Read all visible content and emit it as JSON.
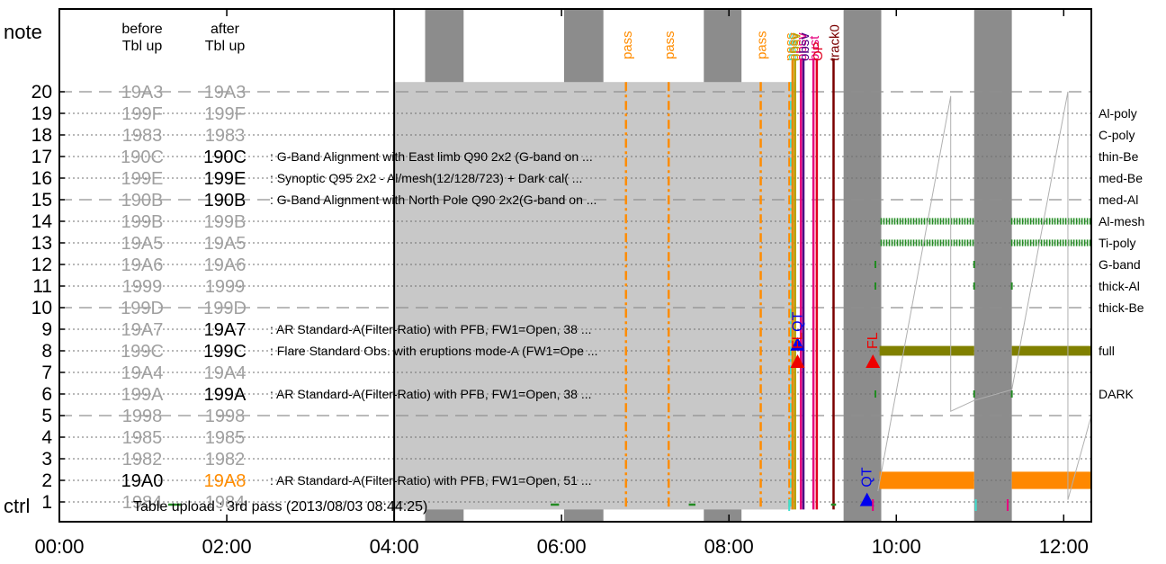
{
  "chart_data": {
    "type": "timeline",
    "title": "",
    "footer": "Table upload : 3rd pass (2013/08/03 08:44:25)",
    "row_axis": {
      "top_label": "note",
      "bottom_label": "ctrl",
      "rows": [
        1,
        2,
        3,
        4,
        5,
        6,
        7,
        8,
        9,
        10,
        11,
        12,
        13,
        14,
        15,
        16,
        17,
        18,
        19,
        20
      ],
      "dashed_rows": [
        5,
        10,
        15,
        20
      ]
    },
    "table_columns": {
      "before": "before\nTbl up",
      "after": "after\nTbl up"
    },
    "table_rows": [
      {
        "row": 20,
        "before": "19A3",
        "after": "19A3",
        "after_state": "same",
        "desc": ""
      },
      {
        "row": 19,
        "before": "199F",
        "after": "199F",
        "after_state": "same",
        "desc": ""
      },
      {
        "row": 18,
        "before": "1983",
        "after": "1983",
        "after_state": "same",
        "desc": ""
      },
      {
        "row": 17,
        "before": "190C",
        "after": "190C",
        "after_state": "active",
        "desc": ": G-Band Alignment with East limb Q90 2x2 (G-band on ..."
      },
      {
        "row": 16,
        "before": "199E",
        "after": "199E",
        "after_state": "active",
        "desc": ": Synoptic Q95 2x2 - Al/mesh(12/128/723) + Dark cal( ..."
      },
      {
        "row": 15,
        "before": "190B",
        "after": "190B",
        "after_state": "active",
        "desc": ": G-Band Alignment with North Pole Q90 2x2(G-band on ..."
      },
      {
        "row": 14,
        "before": "199B",
        "after": "199B",
        "after_state": "same",
        "desc": ""
      },
      {
        "row": 13,
        "before": "19A5",
        "after": "19A5",
        "after_state": "same",
        "desc": ""
      },
      {
        "row": 12,
        "before": "19A6",
        "after": "19A6",
        "after_state": "same",
        "desc": ""
      },
      {
        "row": 11,
        "before": "1999",
        "after": "1999",
        "after_state": "same",
        "desc": ""
      },
      {
        "row": 10,
        "before": "199D",
        "after": "199D",
        "after_state": "same",
        "desc": ""
      },
      {
        "row": 9,
        "before": "19A7",
        "after": "19A7",
        "after_state": "active",
        "desc": ": AR Standard-A(Filter-Ratio) with PFB, FW1=Open, 38 ..."
      },
      {
        "row": 8,
        "before": "199C",
        "after": "199C",
        "after_state": "active",
        "desc": ": Flare Standard Obs. with eruptions mode-A (FW1=Ope ..."
      },
      {
        "row": 7,
        "before": "19A4",
        "after": "19A4",
        "after_state": "same",
        "desc": ""
      },
      {
        "row": 6,
        "before": "199A",
        "after": "199A",
        "after_state": "active",
        "desc": ": AR Standard-A(Filter-Ratio) with PFB, FW1=Open, 38 ..."
      },
      {
        "row": 5,
        "before": "1998",
        "after": "1998",
        "after_state": "same",
        "desc": ""
      },
      {
        "row": 4,
        "before": "1985",
        "after": "1985",
        "after_state": "same",
        "desc": ""
      },
      {
        "row": 3,
        "before": "1982",
        "after": "1982",
        "after_state": "same",
        "desc": ""
      },
      {
        "row": 2,
        "before": "19A0",
        "after": "19A8",
        "after_state": "changed",
        "desc": ": AR Standard-A(Filter-Ratio) with PFB, FW1=Open, 51 ..."
      },
      {
        "row": 1,
        "before": "1984",
        "after": "1984",
        "after_state": "same",
        "desc": ""
      }
    ],
    "right_labels": [
      {
        "row": 19,
        "text": "Al-poly"
      },
      {
        "row": 18,
        "text": "C-poly"
      },
      {
        "row": 17,
        "text": "thin-Be"
      },
      {
        "row": 16,
        "text": "med-Be"
      },
      {
        "row": 15,
        "text": "med-Al"
      },
      {
        "row": 14,
        "text": "Al-mesh"
      },
      {
        "row": 13,
        "text": "Ti-poly"
      },
      {
        "row": 12,
        "text": "G-band"
      },
      {
        "row": 11,
        "text": "thick-Al"
      },
      {
        "row": 10,
        "text": "thick-Be"
      },
      {
        "row": 8,
        "text": "full"
      },
      {
        "row": 6,
        "text": "DARK"
      }
    ],
    "x_axis": {
      "min_hours": 0,
      "max_hours": 12.33,
      "ticks": [
        {
          "h": 0,
          "label": "00:00"
        },
        {
          "h": 2,
          "label": "02:00"
        },
        {
          "h": 4,
          "label": "04:00"
        },
        {
          "h": 6,
          "label": "06:00"
        },
        {
          "h": 8,
          "label": "08:00"
        },
        {
          "h": 10,
          "label": "10:00"
        },
        {
          "h": 12,
          "label": "12:00"
        }
      ]
    },
    "night_bands": [
      [
        4.37,
        4.83
      ],
      [
        6.03,
        6.5
      ],
      [
        7.7,
        8.15
      ],
      [
        9.37,
        9.82
      ],
      [
        10.93,
        11.38
      ]
    ],
    "gray_region": {
      "start": 4.0,
      "end": 8.78,
      "row_from": 0.65,
      "row_to": 20.45
    },
    "pass_lines": [
      {
        "h": 6.77,
        "label": "pass"
      },
      {
        "h": 7.28,
        "label": "pass"
      },
      {
        "h": 8.38,
        "label": "pass"
      }
    ],
    "event_lines": [
      {
        "h": 8.72,
        "label": "pass",
        "color": "#ff8c00",
        "style": "dashdot"
      },
      {
        "h": 8.74,
        "label": "pass",
        "color": "#40e0d0",
        "style": "dashdot"
      },
      {
        "h": 8.76,
        "label": "obsv",
        "color": "#e8890a",
        "style": "solid"
      },
      {
        "h": 8.79,
        "label": "obsv",
        "color": "#b8a000",
        "style": "solid"
      },
      {
        "h": 8.86,
        "label": "obsv",
        "color": "#e6007e",
        "style": "solid"
      },
      {
        "h": 8.89,
        "label": "obsv",
        "color": "#4b0082",
        "style": "solid"
      },
      {
        "h": 9.01,
        "label": "bust",
        "color": "#e6007e",
        "style": "solid"
      },
      {
        "h": 9.05,
        "label": "OP",
        "color": "#e00020",
        "style": "solid"
      },
      {
        "h": 9.25,
        "label": "track0",
        "color": "#7a0000",
        "style": "solid"
      }
    ],
    "markers": [
      {
        "h": 8.82,
        "row": 8.3,
        "shape": "triangle",
        "color": "#0000ee",
        "label": "QT"
      },
      {
        "h": 8.82,
        "row": 7.5,
        "shape": "triangle",
        "color": "#ee0000",
        "label": "FL"
      },
      {
        "h": 9.72,
        "row": 7.5,
        "shape": "triangle",
        "color": "#ee0000",
        "label": "FL"
      },
      {
        "h": 9.65,
        "row": 1.1,
        "shape": "triangle",
        "color": "#0000ee",
        "label": "QT"
      }
    ],
    "bars": [
      {
        "row": 2,
        "from": 9.8,
        "to": 10.93,
        "color": "#ff8800",
        "height": 0.8
      },
      {
        "row": 2,
        "from": 11.38,
        "to": 12.33,
        "color": "#ff8800",
        "height": 0.8
      },
      {
        "row": 8,
        "from": 9.8,
        "to": 10.93,
        "color": "#808000",
        "height": 0.45
      },
      {
        "row": 8,
        "from": 11.38,
        "to": 12.33,
        "color": "#808000",
        "height": 0.45
      },
      {
        "row": 14,
        "from": 9.82,
        "to": 10.93,
        "color": "#228b22",
        "height": 0.3,
        "pattern": "ticks"
      },
      {
        "row": 14,
        "from": 11.38,
        "to": 12.33,
        "color": "#228b22",
        "height": 0.3,
        "pattern": "ticks"
      },
      {
        "row": 13,
        "from": 9.82,
        "to": 10.93,
        "color": "#228b22",
        "height": 0.3,
        "pattern": "ticks"
      },
      {
        "row": 13,
        "from": 11.38,
        "to": 12.33,
        "color": "#228b22",
        "height": 0.3,
        "pattern": "ticks"
      }
    ],
    "sawtooth": [
      [
        9.78,
        1.5
      ],
      [
        10.65,
        19.8
      ],
      [
        10.65,
        5.2
      ],
      [
        10.93,
        5.7
      ],
      [
        11.38,
        6.2
      ],
      [
        11.38,
        6.2
      ],
      [
        12.05,
        20.0
      ],
      [
        12.05,
        1.1
      ],
      [
        12.33,
        5.0
      ]
    ],
    "ctrl_segments": [
      {
        "from": 1.3,
        "to": 1.45,
        "color": "#228b22"
      },
      {
        "from": 5.87,
        "to": 5.97,
        "color": "#228b22"
      },
      {
        "from": 7.52,
        "to": 7.6,
        "color": "#228b22"
      },
      {
        "from": 9.22,
        "to": 9.28,
        "color": "#228b22"
      },
      {
        "from": 8.72,
        "to": 8.74,
        "color": "#40e0d0",
        "tick": true
      },
      {
        "from": 9.72,
        "to": 9.74,
        "color": "#e6007e",
        "tick": true
      },
      {
        "from": 10.95,
        "to": 10.97,
        "color": "#40e0d0",
        "tick": true
      },
      {
        "from": 11.33,
        "to": 11.35,
        "color": "#e6007e",
        "tick": true
      }
    ]
  }
}
